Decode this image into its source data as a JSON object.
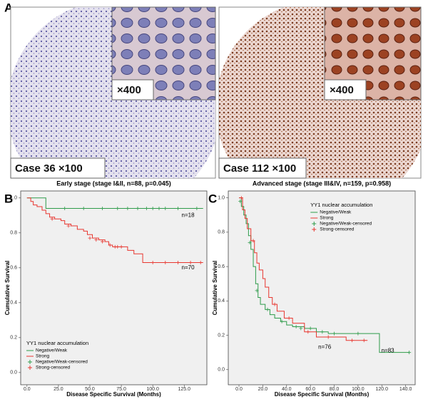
{
  "panels": {
    "a_label": "A",
    "b_label": "B",
    "c_label": "C",
    "left_caption": "Case 36 ×100",
    "left_inset_caption": "×400",
    "right_caption": "Case 112 ×100",
    "right_inset_caption": "×400"
  },
  "chart_data": [
    {
      "type": "line",
      "step": true,
      "title": "Early stage (stage I&II, n=88, p=0.045)",
      "y_label": "Cumulative Survival",
      "x_label": "Disease Specific Survival (Months)",
      "legend_title": "YY1 nuclear accumulation",
      "legend": "lower left",
      "xlim": [
        -5,
        143
      ],
      "ylim": [
        -0.07,
        1.04
      ],
      "xticks": [
        {
          "value": 0,
          "label": "0.0"
        },
        {
          "value": 25,
          "label": "25.0"
        },
        {
          "value": 50,
          "label": "50.0"
        },
        {
          "value": 75,
          "label": "75.0"
        },
        {
          "value": 100,
          "label": "100.0"
        },
        {
          "value": 125,
          "label": "125.0"
        }
      ],
      "yticks": [
        {
          "value": 0,
          "label": "0.0"
        },
        0.2,
        0.4,
        0.6,
        0.8,
        {
          "value": 1,
          "label": "1.0"
        }
      ],
      "series": [
        {
          "name": "Negative/Weak",
          "color": "#2e9b4a",
          "marker": "line",
          "x": [
            0,
            15,
            140
          ],
          "values": [
            1,
            0.94,
            0.94
          ]
        },
        {
          "name": "Strong",
          "color": "#e8362f",
          "marker": "line",
          "x": [
            0,
            3,
            5,
            8,
            12,
            15,
            18,
            22,
            27,
            30,
            35,
            40,
            45,
            48,
            52,
            57,
            62,
            65,
            68,
            80,
            85,
            92,
            140
          ],
          "values": [
            1,
            0.98,
            0.96,
            0.95,
            0.93,
            0.91,
            0.89,
            0.88,
            0.87,
            0.85,
            0.84,
            0.82,
            0.81,
            0.79,
            0.77,
            0.76,
            0.75,
            0.73,
            0.72,
            0.7,
            0.68,
            0.63,
            0.63
          ]
        },
        {
          "name": "Negative/Weak-censored",
          "color": "#2e9b4a",
          "marker": "+",
          "x": [
            30,
            45,
            60,
            72,
            80,
            88,
            95,
            100,
            105,
            110,
            120,
            135
          ],
          "values": [
            0.94,
            0.94,
            0.94,
            0.94,
            0.94,
            0.94,
            0.94,
            0.94,
            0.94,
            0.94,
            0.94,
            0.94
          ]
        },
        {
          "name": "Strong-censored",
          "color": "#e8362f",
          "marker": "+",
          "x": [
            20,
            33,
            50,
            55,
            60,
            66,
            70,
            72,
            75,
            100,
            110,
            120,
            130,
            138
          ],
          "values": [
            0.88,
            0.84,
            0.77,
            0.76,
            0.75,
            0.73,
            0.72,
            0.72,
            0.72,
            0.63,
            0.63,
            0.63,
            0.63,
            0.63
          ]
        }
      ],
      "annotations": [
        {
          "text": "n=18",
          "x": 128,
          "y": 0.9
        },
        {
          "text": "n=70",
          "x": 128,
          "y": 0.6
        }
      ]
    },
    {
      "type": "line",
      "step": true,
      "title": "Advanced stage (stage III&IV, n=159, p=0.958)",
      "y_label": "Cumulative Survival",
      "x_label": "Disease Specific Survival (Months)",
      "legend_title": "YY1 nuclear accumulation",
      "legend": "upper right",
      "xlim": [
        -9,
        148
      ],
      "ylim": [
        -0.088,
        1.04
      ],
      "xticks": [
        {
          "value": 0,
          "label": "0.0"
        },
        {
          "value": 20,
          "label": "20.0"
        },
        {
          "value": 40,
          "label": "40.0"
        },
        {
          "value": 60,
          "label": "60.0"
        },
        {
          "value": 80,
          "label": "80.0"
        },
        {
          "value": 100,
          "label": "100.0"
        },
        {
          "value": 120,
          "label": "120.0"
        },
        {
          "value": 140,
          "label": "140.0"
        }
      ],
      "yticks": [
        {
          "value": 0,
          "label": "0.0"
        },
        0.2,
        0.4,
        0.6,
        0.8,
        {
          "value": 1,
          "label": "1.0"
        }
      ],
      "series": [
        {
          "name": "Negative/Weak",
          "color": "#2e9b4a",
          "marker": "line",
          "x": [
            0,
            2,
            4,
            6,
            8,
            10,
            12,
            14,
            16,
            18,
            22,
            26,
            30,
            35,
            40,
            45,
            55,
            65,
            75,
            118,
            143
          ],
          "values": [
            1,
            0.95,
            0.9,
            0.85,
            0.78,
            0.7,
            0.6,
            0.5,
            0.42,
            0.38,
            0.35,
            0.32,
            0.3,
            0.28,
            0.26,
            0.25,
            0.24,
            0.22,
            0.21,
            0.1,
            0.1
          ]
        },
        {
          "name": "Strong",
          "color": "#e8362f",
          "marker": "line",
          "x": [
            0,
            3,
            5,
            7,
            10,
            13,
            15,
            17,
            20,
            22,
            25,
            28,
            32,
            38,
            45,
            55,
            65,
            90,
            108
          ],
          "values": [
            1,
            0.93,
            0.88,
            0.82,
            0.75,
            0.68,
            0.62,
            0.58,
            0.53,
            0.48,
            0.42,
            0.38,
            0.34,
            0.3,
            0.27,
            0.22,
            0.19,
            0.17,
            0.17
          ]
        },
        {
          "name": "Negative/Weak-censored",
          "color": "#2e9b4a",
          "marker": "+",
          "x": [
            1,
            9,
            15,
            24,
            36,
            48,
            52,
            60,
            70,
            80,
            100,
            143
          ],
          "values": [
            0.98,
            0.74,
            0.46,
            0.35,
            0.28,
            0.25,
            0.24,
            0.24,
            0.22,
            0.21,
            0.21,
            0.1
          ]
        },
        {
          "name": "Strong-censored",
          "color": "#e8362f",
          "marker": "+",
          "x": [
            2,
            12,
            30,
            42,
            58,
            75,
            95,
            105
          ],
          "values": [
            1,
            0.75,
            0.38,
            0.3,
            0.22,
            0.19,
            0.17,
            0.17
          ]
        }
      ],
      "annotations": [
        {
          "text": "n=76",
          "x": 72,
          "y": 0.13
        },
        {
          "text": "n=83",
          "x": 125,
          "y": 0.11
        }
      ]
    }
  ]
}
